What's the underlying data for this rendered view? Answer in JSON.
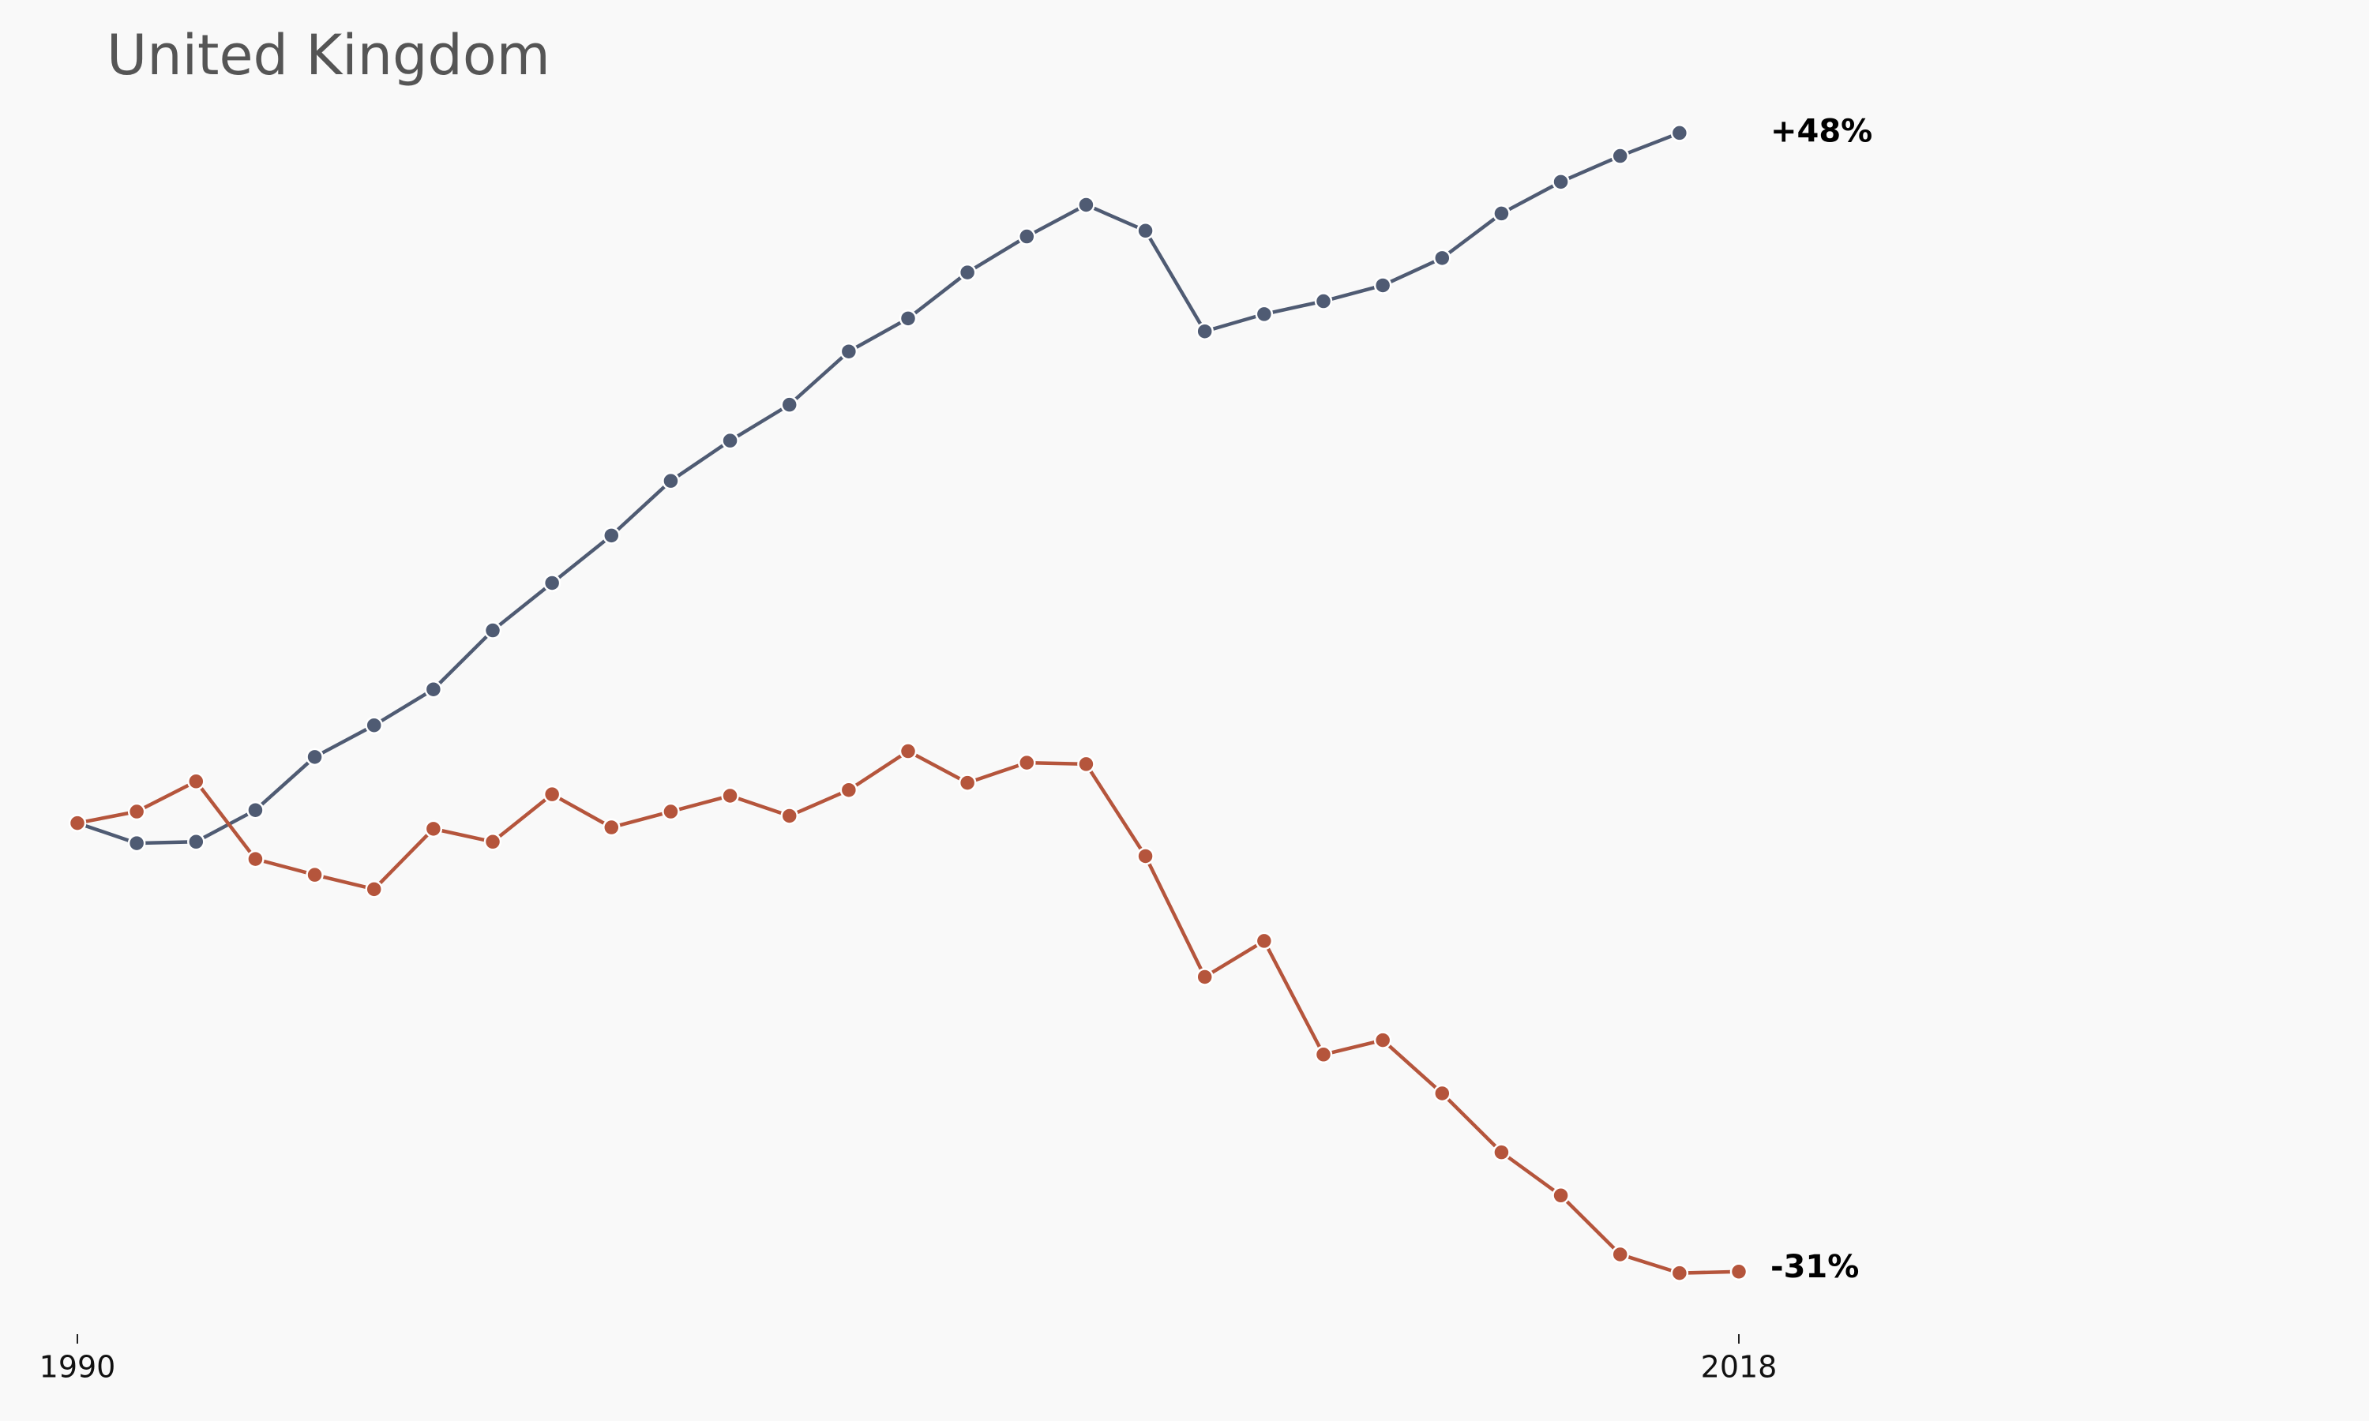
{
  "chart_data": {
    "type": "line",
    "title": "United Kingdom",
    "x": [
      1990,
      1991,
      1992,
      1993,
      1994,
      1995,
      1996,
      1997,
      1998,
      1999,
      2000,
      2001,
      2002,
      2003,
      2004,
      2005,
      2006,
      2007,
      2008,
      2009,
      2010,
      2011,
      2012,
      2013,
      2014,
      2015,
      2016,
      2017,
      2018
    ],
    "series": [
      {
        "color": "#4f5b73",
        "values": [
          0,
          -1.4,
          -1.3,
          0.9,
          4.6,
          6.8,
          9.3,
          13.4,
          16.7,
          20.0,
          23.8,
          26.6,
          29.1,
          32.8,
          35.1,
          38.3,
          40.8,
          43.0,
          41.2,
          34.2,
          35.4,
          36.3,
          37.4,
          39.3,
          42.4,
          44.6,
          46.4,
          48.0,
          null
        ]
      },
      {
        "color": "#b5553c",
        "values": [
          0,
          0.8,
          2.9,
          -2.5,
          -3.6,
          -4.6,
          -0.4,
          -1.3,
          2.0,
          -0.3,
          0.8,
          1.9,
          0.5,
          2.3,
          5.0,
          2.8,
          4.2,
          4.1,
          -2.3,
          -10.7,
          -8.2,
          -16.1,
          -15.1,
          -18.8,
          -22.9,
          -25.9,
          -30.0,
          -31.3,
          -31.2
        ]
      }
    ],
    "annotations": [
      {
        "label": "+48%",
        "value": 48
      },
      {
        "label": "-31%",
        "value": -31
      }
    ],
    "xlim": [
      1990,
      2018
    ],
    "xticks": [
      1990,
      2018
    ],
    "ylim": [
      -35,
      50
    ],
    "grid": false
  }
}
